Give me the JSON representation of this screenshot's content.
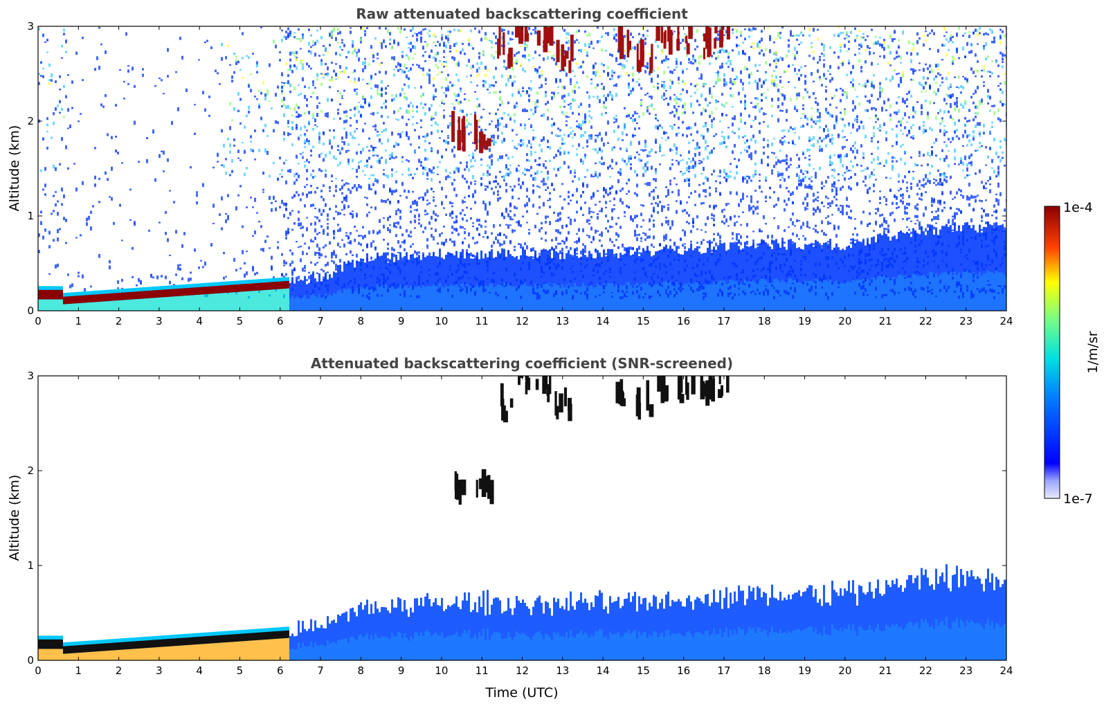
{
  "colors": {
    "cloud": "#8b0000",
    "boundary_layer": "#1e5cff",
    "background_noise": "#3fbfff"
  },
  "chart_data": [
    {
      "type": "heatmap",
      "title": "Raw attenuated backscattering coefficient",
      "xlabel": "",
      "ylabel": "Altitude (km)",
      "xlim": [
        0,
        24
      ],
      "ylim": [
        0,
        3
      ],
      "xticks": [
        "0",
        "1",
        "2",
        "3",
        "4",
        "5",
        "6",
        "7",
        "8",
        "9",
        "10",
        "11",
        "12",
        "13",
        "14",
        "15",
        "16",
        "17",
        "18",
        "19",
        "20",
        "21",
        "22",
        "23",
        "24"
      ],
      "yticks": [
        "0",
        "1",
        "2",
        "3"
      ],
      "features": {
        "low_cloud_layer": [
          [
            0.6,
            0.1
          ],
          [
            1,
            0.08
          ],
          [
            2,
            0.1
          ],
          [
            3,
            0.12
          ],
          [
            4,
            0.15
          ],
          [
            5,
            0.22
          ],
          [
            6,
            0.28
          ]
        ],
        "boundary_layer_top_km": [
          [
            6,
            0.3
          ],
          [
            7,
            0.35
          ],
          [
            8,
            0.55
          ],
          [
            10,
            0.6
          ],
          [
            12,
            0.6
          ],
          [
            14,
            0.6
          ],
          [
            16,
            0.65
          ],
          [
            18,
            0.7
          ],
          [
            20,
            0.7
          ],
          [
            22,
            0.85
          ],
          [
            24,
            0.9
          ]
        ],
        "mid_level_clouds": [
          [
            10.4,
            1.72
          ],
          [
            11,
            1.72
          ],
          [
            11.5,
            2.6
          ],
          [
            12,
            2.9
          ],
          [
            12.5,
            2.8
          ],
          [
            13,
            2.6
          ],
          [
            14.5,
            2.7
          ],
          [
            15,
            2.6
          ],
          [
            15.5,
            2.8
          ],
          [
            16,
            2.8
          ],
          [
            16.5,
            2.75
          ],
          [
            16.9,
            2.85
          ]
        ]
      }
    },
    {
      "type": "heatmap",
      "title": "Attenuated backscattering coefficient (SNR-screened)",
      "xlabel": "Time (UTC)",
      "ylabel": "Altitude (km)",
      "xlim": [
        0,
        24
      ],
      "ylim": [
        0,
        3
      ],
      "xticks": [
        "0",
        "1",
        "2",
        "3",
        "4",
        "5",
        "6",
        "7",
        "8",
        "9",
        "10",
        "11",
        "12",
        "13",
        "14",
        "15",
        "16",
        "17",
        "18",
        "19",
        "20",
        "21",
        "22",
        "23",
        "24"
      ],
      "yticks": [
        "0",
        "1",
        "2",
        "3"
      ]
    }
  ],
  "colorbar": {
    "label": "1/m/sr",
    "max_label": "1e-4",
    "min_label": "1e-7",
    "scale": "log",
    "colormap": "jet"
  }
}
